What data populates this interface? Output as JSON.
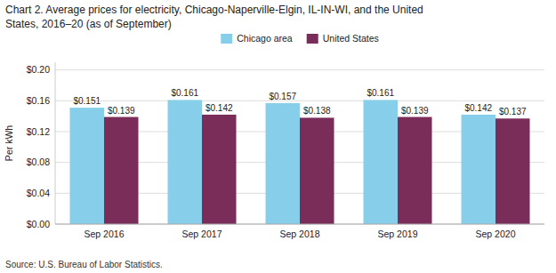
{
  "chart_data": {
    "type": "bar",
    "title": "Chart 2. Average prices for electricity, Chicago-Naperville-Elgin, IL-IN-WI, and the United\nStates, 2016–20  (as of September)",
    "y_label": "Per kWh",
    "annotations": [
      "Source: U.S. Bureau of Labor Statistics."
    ],
    "categories": [
      "Sep 2016",
      "Sep 2017",
      "Sep 2018",
      "Sep 2019",
      "Sep 2020"
    ],
    "series": [
      {
        "name": "Chicago area",
        "color": "#87CEEB",
        "values": [
          0.151,
          0.161,
          0.157,
          0.161,
          0.142
        ],
        "value_labels": [
          "$0.151",
          "$0.161",
          "$0.157",
          "$0.161",
          "$0.142"
        ]
      },
      {
        "name": "United States",
        "color": "#7B2D5A",
        "values": [
          0.139,
          0.142,
          0.138,
          0.139,
          0.137
        ],
        "value_labels": [
          "$0.139",
          "$0.142",
          "$0.138",
          "$0.139",
          "$0.137"
        ]
      }
    ],
    "ylim": [
      0,
      0.21
    ],
    "yticks": [
      {
        "value": 0.0,
        "label": "$0.00"
      },
      {
        "value": 0.04,
        "label": "$0.04"
      },
      {
        "value": 0.08,
        "label": "$0.08"
      },
      {
        "value": 0.12,
        "label": "$0.12"
      },
      {
        "value": 0.16,
        "label": "$0.16"
      },
      {
        "value": 0.2,
        "label": "$0.20"
      }
    ],
    "grid": true,
    "legend": "top",
    "data_labels": true
  }
}
